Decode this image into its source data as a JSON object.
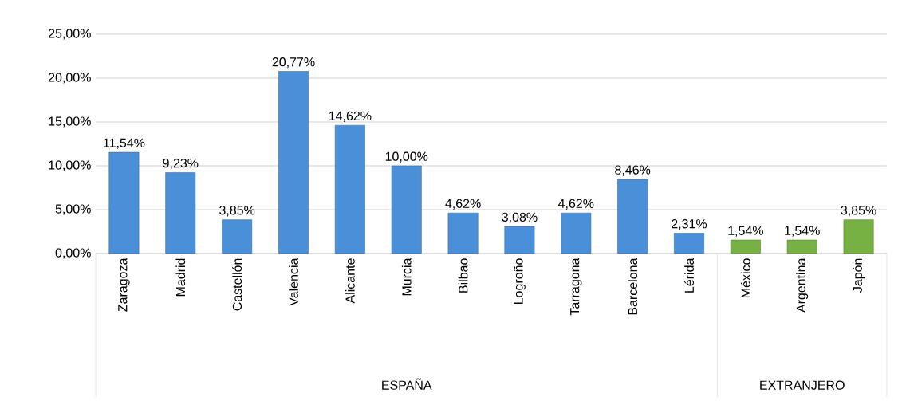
{
  "chart_data": {
    "type": "bar",
    "categories": [
      "Zaragoza",
      "Madrid",
      "Castellón",
      "Valencia",
      "Alicante",
      "Murcia",
      "Bilbao",
      "Logroño",
      "Tarragona",
      "Barcelona",
      "Lérida",
      "México",
      "Argentina",
      "Japón"
    ],
    "values": [
      11.54,
      9.23,
      3.85,
      20.77,
      14.62,
      10.0,
      4.62,
      3.08,
      4.62,
      8.46,
      2.31,
      1.54,
      1.54,
      3.85
    ],
    "colors": [
      "#4a90d9",
      "#4a90d9",
      "#4a90d9",
      "#4a90d9",
      "#4a90d9",
      "#4a90d9",
      "#4a90d9",
      "#4a90d9",
      "#4a90d9",
      "#4a90d9",
      "#4a90d9",
      "#77b143",
      "#77b143",
      "#77b143"
    ],
    "value_labels": [
      "11,54%",
      "9,23%",
      "3,85%",
      "20,77%",
      "14,62%",
      "10,00%",
      "4,62%",
      "3,08%",
      "4,62%",
      "8,46%",
      "2,31%",
      "1,54%",
      "1,54%",
      "3,85%"
    ],
    "ylim": [
      0,
      25
    ],
    "yticks": [
      {
        "value": 0,
        "label": "0,00%"
      },
      {
        "value": 5,
        "label": "5,00%"
      },
      {
        "value": 10,
        "label": "10,00%"
      },
      {
        "value": 15,
        "label": "15,00%"
      },
      {
        "value": 20,
        "label": "20,00%"
      },
      {
        "value": 25,
        "label": "25,00%"
      }
    ],
    "grid": "y",
    "annotations": [
      "ESPAÑA",
      "EXTRANJERO"
    ]
  }
}
